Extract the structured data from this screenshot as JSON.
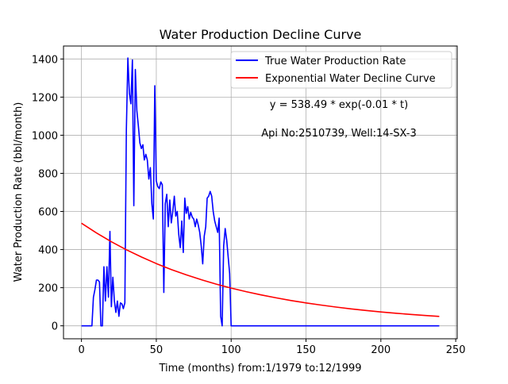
{
  "chart_data": {
    "type": "line",
    "title": "Water Production Decline Curve",
    "xlabel": "Time (months) from:1/1979 to:12/1999",
    "ylabel": "Water Production Rate (bbl/month)",
    "xlim": [
      -12,
      251
    ],
    "ylim": [
      -68,
      1468
    ],
    "grid": true,
    "legend_position": "top-right",
    "xticks": [
      0,
      50,
      100,
      150,
      200,
      250
    ],
    "yticks": [
      0,
      200,
      400,
      600,
      800,
      1000,
      1200,
      1400
    ],
    "annotations": [
      "y = 538.49 * exp(-0.01 * t)",
      "Api No:2510739, Well:14-SX-3"
    ],
    "series": [
      {
        "name": "True Water Production Rate",
        "color": "#0000ff",
        "x": [
          0,
          1,
          2,
          3,
          4,
          5,
          6,
          7,
          8,
          9,
          10,
          11,
          12,
          13,
          14,
          15,
          16,
          17,
          18,
          19,
          20,
          21,
          22,
          23,
          24,
          25,
          26,
          27,
          28,
          29,
          30,
          31,
          32,
          33,
          34,
          35,
          36,
          37,
          38,
          39,
          40,
          41,
          42,
          43,
          44,
          45,
          46,
          47,
          48,
          49,
          50,
          51,
          52,
          53,
          54,
          55,
          56,
          57,
          58,
          59,
          60,
          61,
          62,
          63,
          64,
          65,
          66,
          67,
          68,
          69,
          70,
          71,
          72,
          73,
          74,
          75,
          76,
          77,
          78,
          79,
          80,
          81,
          82,
          83,
          84,
          85,
          86,
          87,
          88,
          89,
          90,
          91,
          92,
          93,
          94,
          95,
          96,
          97,
          98,
          99,
          100,
          101,
          102,
          103,
          104,
          105,
          106,
          107,
          108,
          109,
          110,
          120,
          140,
          160,
          180,
          200,
          220,
          239
        ],
        "y": [
          0,
          0,
          0,
          0,
          0,
          0,
          0,
          0,
          150,
          190,
          240,
          240,
          230,
          0,
          0,
          310,
          130,
          310,
          150,
          495,
          100,
          255,
          130,
          70,
          130,
          50,
          120,
          115,
          90,
          120,
          1030,
          1405,
          1220,
          1165,
          1395,
          630,
          1345,
          1130,
          1050,
          960,
          930,
          950,
          870,
          900,
          870,
          770,
          830,
          640,
          560,
          1260,
          760,
          730,
          720,
          755,
          740,
          175,
          640,
          690,
          520,
          660,
          540,
          600,
          680,
          575,
          600,
          480,
          410,
          550,
          385,
          670,
          590,
          625,
          560,
          595,
          570,
          560,
          520,
          560,
          530,
          490,
          420,
          325,
          470,
          520,
          670,
          680,
          705,
          680,
          600,
          550,
          520,
          490,
          565,
          50,
          0,
          420,
          510,
          450,
          360,
          275,
          0,
          0,
          0,
          0,
          0,
          0,
          0,
          0,
          0,
          0,
          0,
          0,
          0,
          0,
          0,
          0,
          0,
          0
        ]
      },
      {
        "name": "Exponential Water Decline Curve",
        "color": "#ff0000",
        "x": [
          0,
          10,
          20,
          30,
          40,
          50,
          60,
          70,
          80,
          90,
          100,
          110,
          120,
          130,
          140,
          150,
          160,
          170,
          180,
          190,
          200,
          210,
          220,
          230,
          239
        ],
        "y": [
          538.49,
          487.25,
          440.88,
          398.93,
          360.97,
          326.62,
          295.54,
          267.42,
          241.97,
          218.95,
          198.11,
          179.26,
          162.2,
          146.77,
          132.8,
          120.16,
          108.73,
          98.38,
          89.02,
          80.55,
          72.88,
          65.95,
          59.67,
          53.99,
          49.37
        ]
      }
    ]
  }
}
